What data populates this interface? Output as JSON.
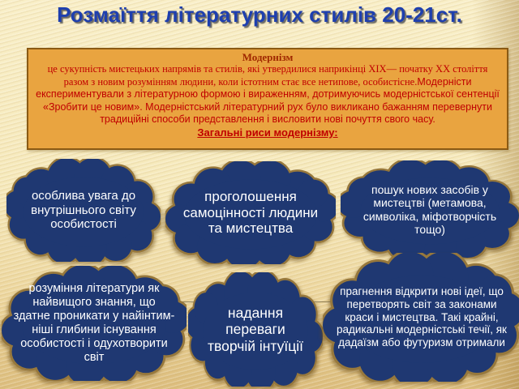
{
  "slide": {
    "title": "Розмаїття літературних стилів 20-21ст.",
    "infobox": {
      "heading": "Модернізм",
      "body_serif": "це сукупність мистецьких напрямів та стилів, які утвердилися наприкінці XIX— початку XX століття разом з новим розумінням людини, коли істотним стає все нетипове, особистісне.",
      "body_sans": "Модерністи експериментували з літературною формою і вираженням, дотримуючись модерністської сентенції «Зробити це новим». Модерністський літературний рух було викликано бажанням перевернути традиційні способи представлення і висловити нові почуття свого часу.",
      "subheading": "Загальні риси модернізму:"
    },
    "clouds": [
      {
        "text": "особлива увага до внутрішнього світу особистості"
      },
      {
        "text": "проголошення самоцінності людини та мистецтва"
      },
      {
        "text": "пошук нових засобів у мистецтві (метамова, символіка, міфотворчість тощо)"
      },
      {
        "text": "розуміння літератури як найвищого знання, що здатне проникати у найінтим-ніші глибини існування особистості і одухотворити світ"
      },
      {
        "text": "надання переваги творчій інтуїції"
      },
      {
        "text": "прагнення відкрити нові ідеї, що перетворять світ за законами краси і мистецтва. Такі крайні, радикальні модерністські течії, як дадаїзм або футуризм отримали"
      }
    ],
    "colors": {
      "title": "#1e3fae",
      "bg_top": "#f9efc8",
      "bg_bottom": "#dcbd7d",
      "box_bg": "#e9a440",
      "box_border": "#8a5a14",
      "box_heading": "#a02800",
      "box_text": "#c00000",
      "cloud_fill": "#1f3872",
      "cloud_outline": "#97783c",
      "cloud_text": "#ffffff"
    }
  }
}
